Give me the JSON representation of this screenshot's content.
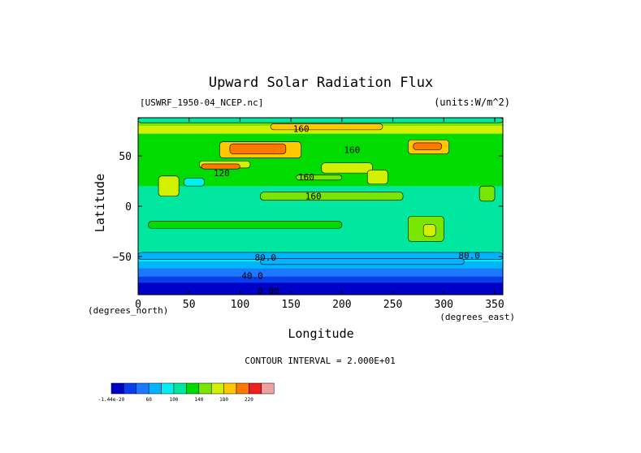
{
  "chart_data": {
    "type": "heatmap",
    "title": "Upward Solar Radiation Flux",
    "subtitle_left": "[USWRF_1950-04_NCEP.nc]",
    "units": "(units:W/m^2)",
    "xlabel": "Longitude",
    "ylabel": "Latitude",
    "x_axis_note": "(degrees_east)",
    "y_axis_note": "(degrees_north)",
    "xlim": [
      0,
      358
    ],
    "ylim": [
      -88,
      88
    ],
    "x_ticks": [
      "0",
      "50",
      "100",
      "150",
      "200",
      "250",
      "300",
      "350"
    ],
    "x_tick_values": [
      0,
      50,
      100,
      150,
      200,
      250,
      300,
      350
    ],
    "y_ticks": [
      "50",
      "0",
      "−50"
    ],
    "y_tick_values": [
      50,
      0,
      -50
    ],
    "contour_interval": "CONTOUR INTERVAL = 2.000E+01",
    "contour_labels": [
      {
        "text": "160",
        "lon": 160,
        "lat": 77
      },
      {
        "text": "160",
        "lon": 210,
        "lat": 56
      },
      {
        "text": "160",
        "lon": 165,
        "lat": 29
      },
      {
        "text": "160",
        "lon": 172,
        "lat": 10
      },
      {
        "text": "120",
        "lon": 82,
        "lat": 33
      },
      {
        "text": "80.0",
        "lon": 125,
        "lat": -51
      },
      {
        "text": "80.0",
        "lon": 325,
        "lat": -49
      },
      {
        "text": "40.0",
        "lon": 112,
        "lat": -69
      },
      {
        "text": "0.00",
        "lon": 128,
        "lat": -84
      }
    ],
    "colorbar": {
      "colors": [
        "#0000c8",
        "#0a3cf0",
        "#1e78ff",
        "#00b4ff",
        "#00f0f0",
        "#00e8a0",
        "#00dc00",
        "#78e600",
        "#d2f000",
        "#ffc800",
        "#ff7800",
        "#f01e1e",
        "#f0a0a0"
      ],
      "labels": [
        {
          "text": "-1.44e-20",
          "boundary": 0
        },
        {
          "text": "60",
          "boundary": 3
        },
        {
          "text": "100",
          "boundary": 5
        },
        {
          "text": "140",
          "boundary": 7
        },
        {
          "text": "180",
          "boundary": 9
        },
        {
          "text": "220",
          "boundary": 11
        }
      ]
    },
    "latitude_bands": [
      {
        "lat_from": 88,
        "lat_to": 80,
        "value": 140
      },
      {
        "lat_from": 80,
        "lat_to": 72,
        "value": 160
      },
      {
        "lat_from": 72,
        "lat_to": 60,
        "value": 120
      },
      {
        "lat_from": 60,
        "lat_to": 40,
        "value": 120
      },
      {
        "lat_from": 40,
        "lat_to": 20,
        "value": 120
      },
      {
        "lat_from": 20,
        "lat_to": 0,
        "value": 100
      },
      {
        "lat_from": 0,
        "lat_to": -20,
        "value": 100
      },
      {
        "lat_from": -20,
        "lat_to": -35,
        "value": 100
      },
      {
        "lat_from": -35,
        "lat_to": -45,
        "value": 100
      },
      {
        "lat_from": -45,
        "lat_to": -55,
        "value": 80
      },
      {
        "lat_from": -55,
        "lat_to": -62,
        "value": 60
      },
      {
        "lat_from": -62,
        "lat_to": -70,
        "value": 40
      },
      {
        "lat_from": -70,
        "lat_to": -76,
        "value": 20
      },
      {
        "lat_from": -76,
        "lat_to": -88,
        "value": 0
      }
    ],
    "regions": [
      {
        "lon_from": 0,
        "lon_to": 358,
        "lat_from": 88,
        "lat_to": 83,
        "value": 100
      },
      {
        "lon_from": 130,
        "lon_to": 240,
        "lat_from": 82,
        "lat_to": 76,
        "value": 180
      },
      {
        "lon_from": 80,
        "lon_to": 160,
        "lat_from": 64,
        "lat_to": 48,
        "value": 180
      },
      {
        "lon_from": 90,
        "lon_to": 145,
        "lat_from": 62,
        "lat_to": 52,
        "value": 200
      },
      {
        "lon_from": 265,
        "lon_to": 305,
        "lat_from": 66,
        "lat_to": 52,
        "value": 180
      },
      {
        "lon_from": 270,
        "lon_to": 298,
        "lat_from": 63,
        "lat_to": 56,
        "value": 200
      },
      {
        "lon_from": 60,
        "lon_to": 110,
        "lat_from": 45,
        "lat_to": 38,
        "value": 160
      },
      {
        "lon_from": 62,
        "lon_to": 100,
        "lat_from": 42,
        "lat_to": 37,
        "value": 200
      },
      {
        "lon_from": 180,
        "lon_to": 230,
        "lat_from": 43,
        "lat_to": 33,
        "value": 160
      },
      {
        "lon_from": 155,
        "lon_to": 200,
        "lat_from": 31,
        "lat_to": 26,
        "value": 140
      },
      {
        "lon_from": 225,
        "lon_to": 245,
        "lat_from": 36,
        "lat_to": 22,
        "value": 160
      },
      {
        "lon_from": 120,
        "lon_to": 260,
        "lat_from": 14,
        "lat_to": 6,
        "value": 140
      },
      {
        "lon_from": 20,
        "lon_to": 40,
        "lat_from": 30,
        "lat_to": 10,
        "value": 160
      },
      {
        "lon_from": 45,
        "lon_to": 65,
        "lat_from": 28,
        "lat_to": 20,
        "value": 80
      },
      {
        "lon_from": 335,
        "lon_to": 350,
        "lat_from": 20,
        "lat_to": 5,
        "value": 140
      },
      {
        "lon_from": 10,
        "lon_to": 200,
        "lat_from": -15,
        "lat_to": -22,
        "value": 120
      },
      {
        "lon_from": 265,
        "lon_to": 300,
        "lat_from": -10,
        "lat_to": -35,
        "value": 140
      },
      {
        "lon_from": 280,
        "lon_to": 292,
        "lat_from": -18,
        "lat_to": -30,
        "value": 160
      },
      {
        "lon_from": 0,
        "lon_to": 358,
        "lat_from": -46,
        "lat_to": -53,
        "value": 60
      },
      {
        "lon_from": 120,
        "lon_to": 320,
        "lat_from": -52,
        "lat_to": -58,
        "value": 60
      }
    ]
  }
}
